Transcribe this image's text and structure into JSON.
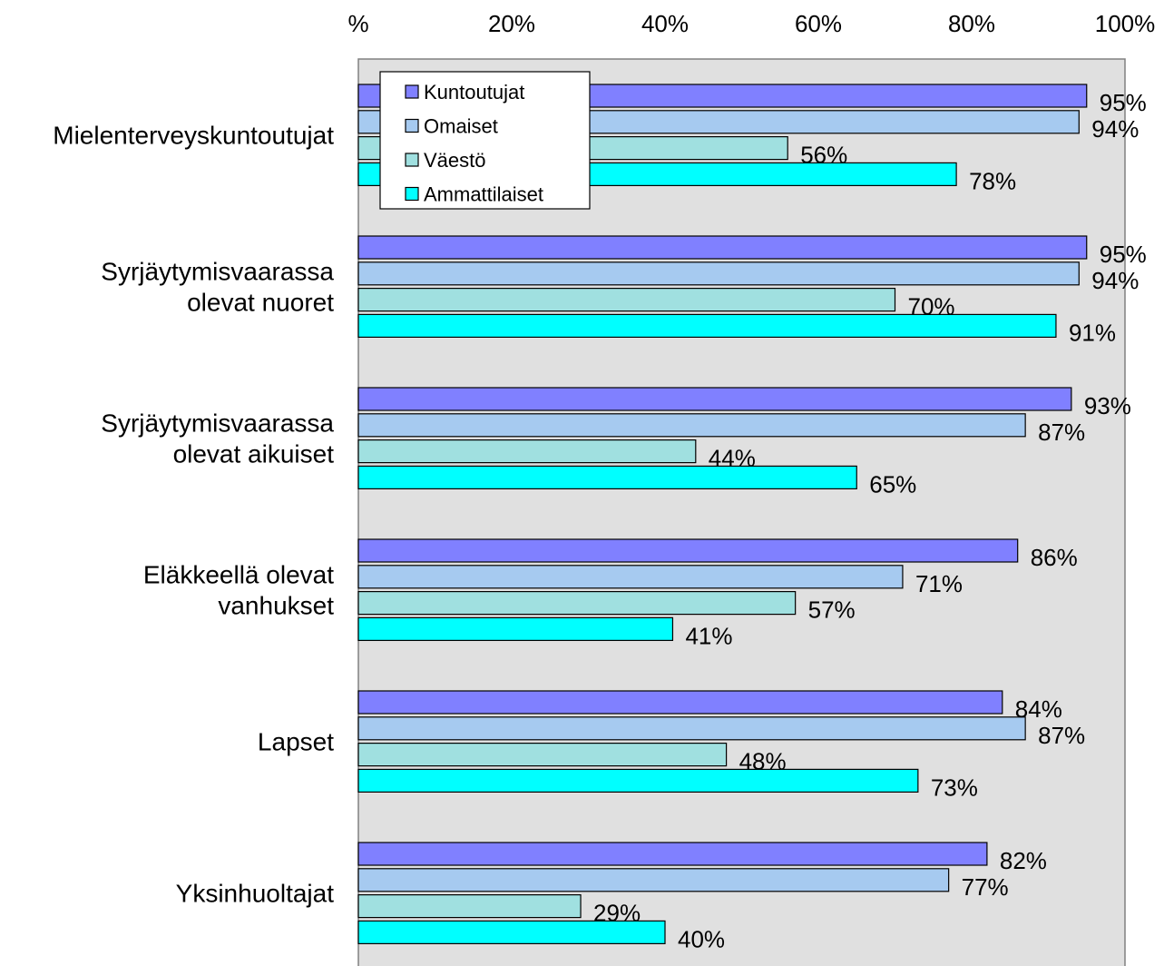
{
  "chart_data": {
    "type": "bar",
    "orientation": "horizontal",
    "title": "",
    "xlabel": "",
    "ylabel": "",
    "xlim": [
      0,
      100
    ],
    "x_ticks": [
      "%",
      "20%",
      "40%",
      "60%",
      "80%",
      "100%"
    ],
    "x_axis_position": "top",
    "grid": false,
    "plot_background": "#e0e0e0",
    "legend_position": "top-left",
    "categories": [
      [
        "Mielenterveyskuntoutujat"
      ],
      [
        "Syrjäytymisvaarassa",
        "olevat nuoret"
      ],
      [
        "Syrjäytymisvaarassa",
        "olevat aikuiset"
      ],
      [
        "Eläkkeellä olevat",
        "vanhukset"
      ],
      [
        "Lapset"
      ],
      [
        "Yksinhuoltajat"
      ]
    ],
    "series": [
      {
        "name": "Kuntoutujat",
        "color": "#8080ff",
        "values": [
          95,
          95,
          93,
          86,
          84,
          82
        ],
        "labels": [
          "95%",
          "95%",
          "93%",
          "86%",
          "84%",
          "82%"
        ]
      },
      {
        "name": "Omaiset",
        "color": "#a6caf0",
        "values": [
          94,
          94,
          87,
          71,
          87,
          77
        ],
        "labels": [
          "94%",
          "94%",
          "87%",
          "71%",
          "87%",
          "77%"
        ]
      },
      {
        "name": "Väestö",
        "color": "#a0e0e0",
        "values": [
          56,
          70,
          44,
          57,
          48,
          29
        ],
        "labels": [
          "56%",
          "70%",
          "44%",
          "57%",
          "48%",
          "29%"
        ]
      },
      {
        "name": "Ammattilaiset",
        "color": "#00ffff",
        "values": [
          78,
          91,
          65,
          41,
          73,
          40
        ],
        "labels": [
          "78%",
          "91%",
          "65%",
          "41%",
          "73%",
          "40%"
        ]
      }
    ]
  }
}
